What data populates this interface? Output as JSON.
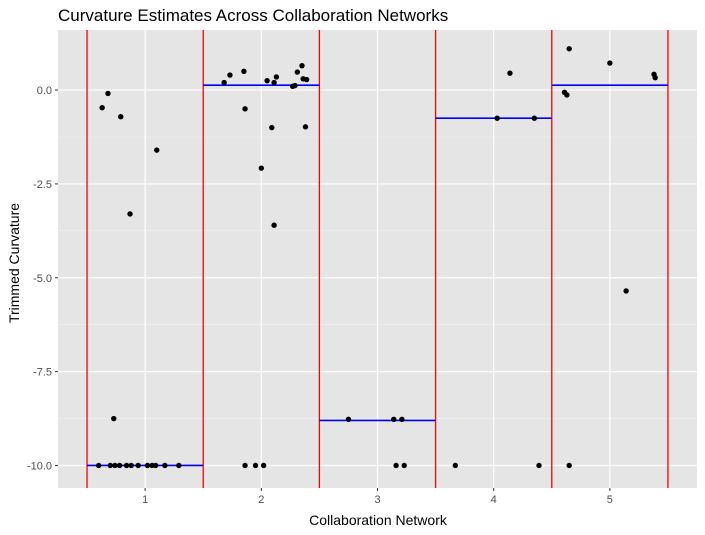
{
  "chart_data": {
    "type": "scatter",
    "title": "Curvature Estimates Across Collaboration Networks",
    "xlabel": "Collaboration Network",
    "ylabel": "Trimmed Curvature",
    "xlim": [
      0.25,
      5.75
    ],
    "ylim": [
      -10.6,
      1.6
    ],
    "x_ticks": [
      1,
      2,
      3,
      4,
      5
    ],
    "y_ticks": [
      0.0,
      -2.5,
      -5.0,
      -7.5,
      -10.0
    ],
    "y_tick_labels": [
      "0.0",
      "-2.5",
      "-5.0",
      "-7.5",
      "-10.0"
    ],
    "grid": true,
    "group_separators": [
      0.5,
      1.5,
      2.5,
      3.5,
      4.5,
      5.5
    ],
    "group_means": [
      {
        "x_start": 0.5,
        "x_end": 1.5,
        "y": -10.0
      },
      {
        "x_start": 1.5,
        "x_end": 2.5,
        "y": 0.13
      },
      {
        "x_start": 2.5,
        "x_end": 3.5,
        "y": -8.8
      },
      {
        "x_start": 3.5,
        "x_end": 4.5,
        "y": -0.75
      },
      {
        "x_start": 4.5,
        "x_end": 5.5,
        "y": 0.13
      }
    ],
    "points": [
      {
        "x": 0.63,
        "y": -0.47
      },
      {
        "x": 0.68,
        "y": -0.09
      },
      {
        "x": 0.79,
        "y": -0.71
      },
      {
        "x": 1.1,
        "y": -1.6
      },
      {
        "x": 0.87,
        "y": -3.3
      },
      {
        "x": 0.73,
        "y": -8.75
      },
      {
        "x": 0.6,
        "y": -10.0
      },
      {
        "x": 0.7,
        "y": -10.0
      },
      {
        "x": 0.74,
        "y": -10.0
      },
      {
        "x": 0.78,
        "y": -10.0
      },
      {
        "x": 0.84,
        "y": -10.0
      },
      {
        "x": 0.88,
        "y": -10.0
      },
      {
        "x": 0.94,
        "y": -10.0
      },
      {
        "x": 1.02,
        "y": -10.0
      },
      {
        "x": 1.06,
        "y": -10.0
      },
      {
        "x": 1.09,
        "y": -10.0
      },
      {
        "x": 1.17,
        "y": -10.0
      },
      {
        "x": 1.29,
        "y": -10.0
      },
      {
        "x": 1.68,
        "y": 0.2
      },
      {
        "x": 1.73,
        "y": 0.4
      },
      {
        "x": 1.85,
        "y": 0.5
      },
      {
        "x": 1.86,
        "y": -0.5
      },
      {
        "x": 2.05,
        "y": 0.25
      },
      {
        "x": 2.11,
        "y": 0.2
      },
      {
        "x": 2.13,
        "y": 0.35
      },
      {
        "x": 2.27,
        "y": 0.1
      },
      {
        "x": 2.31,
        "y": 0.48
      },
      {
        "x": 2.35,
        "y": 0.65
      },
      {
        "x": 2.36,
        "y": 0.3
      },
      {
        "x": 2.39,
        "y": 0.28
      },
      {
        "x": 2.29,
        "y": 0.12
      },
      {
        "x": 2.09,
        "y": -1.0
      },
      {
        "x": 2.38,
        "y": -0.98
      },
      {
        "x": 2.0,
        "y": -2.08
      },
      {
        "x": 2.11,
        "y": -3.6
      },
      {
        "x": 1.86,
        "y": -10.0
      },
      {
        "x": 1.95,
        "y": -10.0
      },
      {
        "x": 2.02,
        "y": -10.0
      },
      {
        "x": 2.75,
        "y": -8.77
      },
      {
        "x": 3.14,
        "y": -8.77
      },
      {
        "x": 3.21,
        "y": -8.77
      },
      {
        "x": 3.16,
        "y": -10.0
      },
      {
        "x": 3.23,
        "y": -10.0
      },
      {
        "x": 3.67,
        "y": -10.0
      },
      {
        "x": 4.03,
        "y": -0.75
      },
      {
        "x": 4.35,
        "y": -0.75
      },
      {
        "x": 4.14,
        "y": 0.45
      },
      {
        "x": 4.39,
        "y": -10.0
      },
      {
        "x": 4.61,
        "y": -0.06
      },
      {
        "x": 4.63,
        "y": -0.13
      },
      {
        "x": 4.65,
        "y": 1.1
      },
      {
        "x": 5.0,
        "y": 0.72
      },
      {
        "x": 5.38,
        "y": 0.42
      },
      {
        "x": 5.39,
        "y": 0.33
      },
      {
        "x": 5.14,
        "y": -5.35
      },
      {
        "x": 4.65,
        "y": -10.0
      }
    ],
    "colors": {
      "panel_background": "#E5E5E5",
      "grid_major": "#FFFFFF",
      "grid_minor": "#F2F2F2",
      "separator": "#FF0000",
      "mean_line": "#0000FF",
      "point": "#000000"
    }
  }
}
